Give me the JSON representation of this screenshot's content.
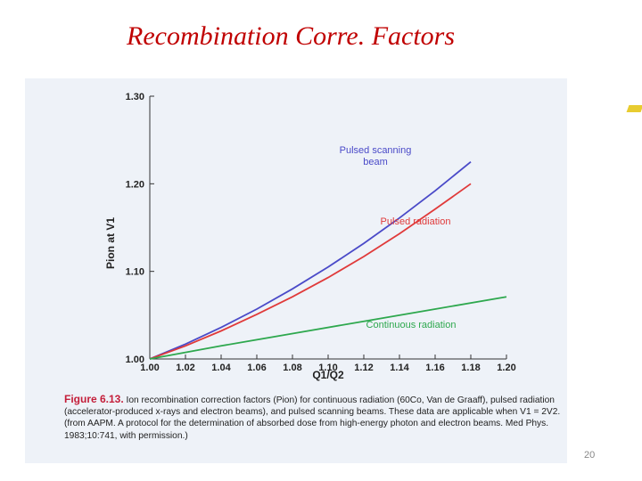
{
  "slide": {
    "title": "Recombination Corre. Factors",
    "page_number": "20"
  },
  "caption": {
    "figure_number": "Figure 6.13.",
    "text": "Ion recombination correction factors (Pion) for continuous radiation (60Co, Van de Graaff), pulsed radiation (accelerator-produced x-rays and electron beams), and pulsed scanning beams. These data are applicable when V1 = 2V2. (from AAPM. A protocol for the determination of absorbed dose from high-energy photon and electron beams. Med Phys. 1983;10:741, with permission.)"
  },
  "colors": {
    "title": "#c00000",
    "pulsed_scanning": "#4a4ac8",
    "pulsed_radiation": "#e03a3a",
    "continuous_radiation": "#2ea84e"
  },
  "chart_data": {
    "type": "line",
    "xlabel": "Q1/Q2",
    "ylabel": "Pion at V1",
    "xlim": [
      1.0,
      1.2
    ],
    "ylim": [
      1.0,
      1.3
    ],
    "x_ticks": [
      "1.00",
      "1.02",
      "1.04",
      "1.06",
      "1.08",
      "1.10",
      "1.12",
      "1.14",
      "1.16",
      "1.18",
      "1.20"
    ],
    "y_ticks": [
      "1.00",
      "1.10",
      "1.20",
      "1.30"
    ],
    "grid": false,
    "series": [
      {
        "name": "Pulsed scanning beam",
        "label_lines": [
          "Pulsed scanning",
          "beam"
        ],
        "color": "#4a4ac8",
        "x": [
          1.0,
          1.02,
          1.04,
          1.06,
          1.08,
          1.1,
          1.12,
          1.14,
          1.16,
          1.18
        ],
        "y": [
          1.0,
          1.017,
          1.036,
          1.057,
          1.08,
          1.105,
          1.132,
          1.161,
          1.192,
          1.225
        ]
      },
      {
        "name": "Pulsed radiation",
        "label_lines": [
          "Pulsed radiation"
        ],
        "color": "#e03a3a",
        "x": [
          1.0,
          1.02,
          1.04,
          1.06,
          1.08,
          1.1,
          1.12,
          1.14,
          1.16,
          1.18
        ],
        "y": [
          1.0,
          1.015,
          1.032,
          1.051,
          1.071,
          1.093,
          1.117,
          1.143,
          1.171,
          1.2
        ]
      },
      {
        "name": "Continuous radiation",
        "label_lines": [
          "Continuous radiation"
        ],
        "color": "#2ea84e",
        "x": [
          1.0,
          1.04,
          1.08,
          1.12,
          1.16,
          1.2
        ],
        "y": [
          1.0,
          1.015,
          1.029,
          1.043,
          1.057,
          1.071
        ]
      }
    ]
  }
}
